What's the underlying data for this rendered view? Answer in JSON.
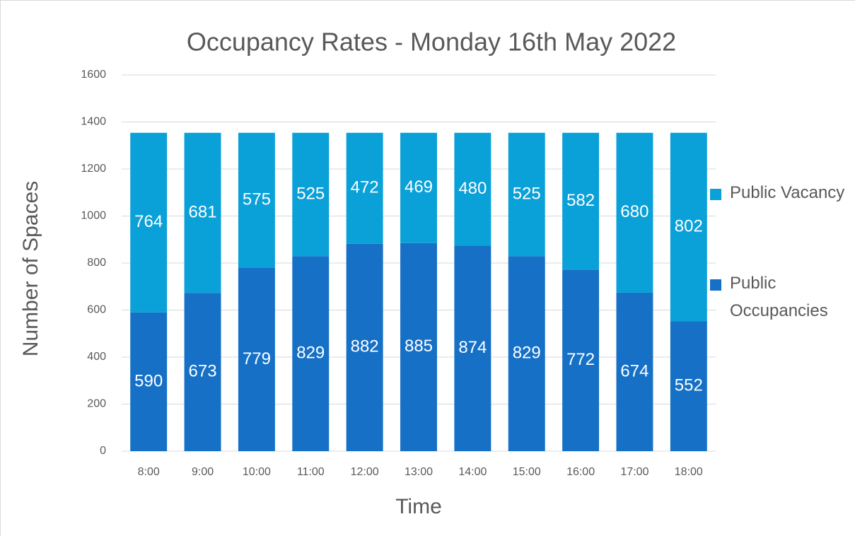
{
  "chart_data": {
    "type": "stacked_bar",
    "title": "Occupancy Rates - Monday 16th May 2022",
    "x_label": "Time",
    "y_label": "Number of Spaces",
    "categories": [
      "8:00",
      "9:00",
      "10:00",
      "11:00",
      "12:00",
      "13:00",
      "14:00",
      "15:00",
      "16:00",
      "17:00",
      "18:00"
    ],
    "series": [
      {
        "name": "Public Occupancies",
        "color": "#1570c6",
        "values": [
          590,
          673,
          779,
          829,
          882,
          885,
          874,
          829,
          772,
          674,
          552
        ]
      },
      {
        "name": "Public Vacancy",
        "color": "#0aa0d8",
        "values": [
          764,
          681,
          575,
          525,
          472,
          469,
          480,
          525,
          582,
          680,
          802
        ]
      }
    ],
    "ylim": [
      0,
      1600
    ],
    "yticks": [
      0,
      200,
      400,
      600,
      800,
      1000,
      1200,
      1400,
      1600
    ],
    "grid": true,
    "legend": "right"
  }
}
